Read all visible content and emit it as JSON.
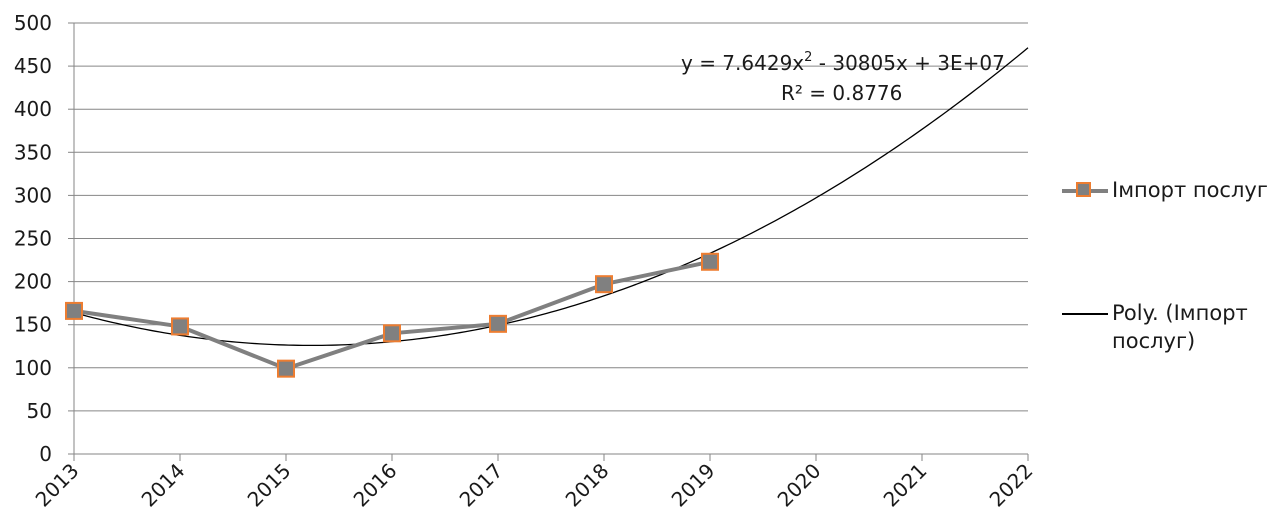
{
  "chart_data": {
    "type": "line",
    "x": [
      "2013",
      "2014",
      "2015",
      "2016",
      "2017",
      "2018",
      "2019",
      "2020",
      "2021",
      "2022"
    ],
    "ylim": [
      0,
      500
    ],
    "y_ticks": [
      "0",
      "50",
      "100",
      "150",
      "200",
      "250",
      "300",
      "350",
      "400",
      "450",
      "500"
    ],
    "grid": true,
    "legend_position": "right",
    "series": [
      {
        "name": "Імпорт послуг",
        "x": [
          2013,
          2014,
          2015,
          2016,
          2017,
          2018,
          2019
        ],
        "values": [
          166,
          148,
          99,
          140,
          151,
          197,
          223
        ],
        "line_color": "#808080",
        "marker": "square",
        "marker_fill": "#808080",
        "marker_edge": "#ed7d31"
      }
    ],
    "trendline": {
      "name_line1": "Poly. (Імпорт",
      "name_line2": "послуг)",
      "type": "polynomial",
      "order": 2,
      "color": "#000000",
      "x_range": [
        2013,
        2022
      ],
      "equation_prefix": "y = 7.6429x",
      "equation_exponent": "2",
      "equation_suffix": " - 30805x + 3E+07",
      "r_squared": "R² = 0.8776"
    }
  }
}
